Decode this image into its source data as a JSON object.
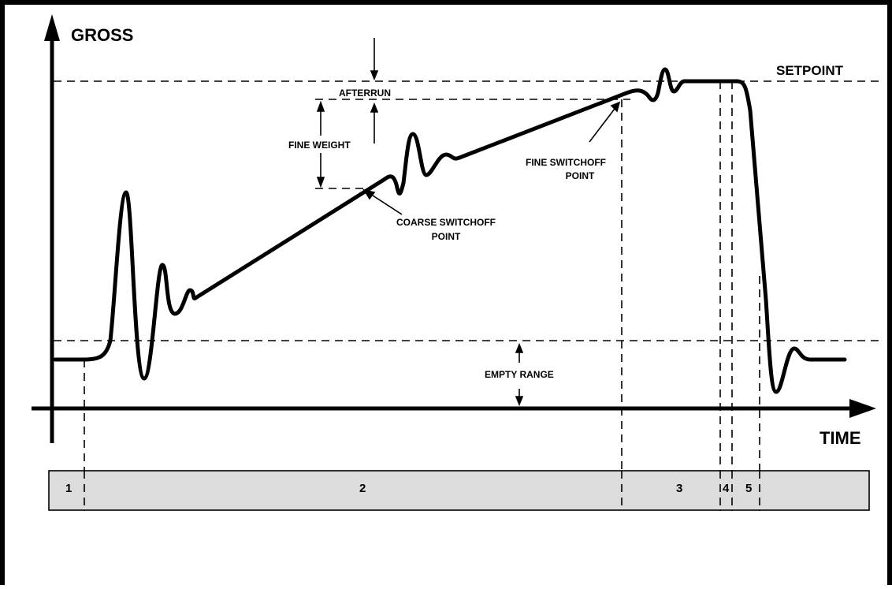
{
  "colors": {
    "frame": "#000000",
    "curve": "#000000",
    "phase_bar_fill": "#dcdcdc",
    "background": "#ffffff"
  },
  "axes": {
    "y_label": "GROSS",
    "x_label": "TIME"
  },
  "annotations": {
    "setpoint": "SETPOINT",
    "afterrun": "AFTERRUN",
    "fine_weight": "FINE WEIGHT",
    "empty_range": "EMPTY RANGE",
    "coarse_switchoff_line1": "COARSE SWITCHOFF",
    "coarse_switchoff_line2": "POINT",
    "fine_switchoff_line1": "FINE SWITCHOFF",
    "fine_switchoff_line2": "POINT"
  },
  "phases": [
    "1",
    "2",
    "3",
    "4",
    "5"
  ]
}
